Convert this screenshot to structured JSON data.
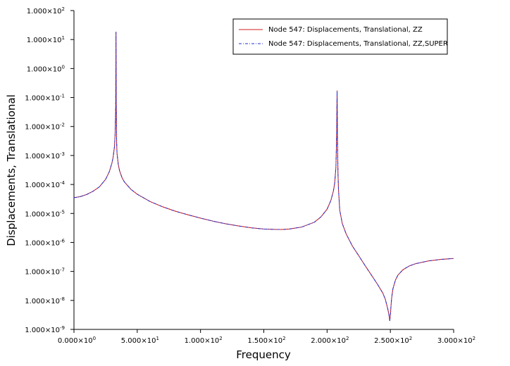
{
  "chart_data": {
    "type": "line",
    "title": "",
    "xlabel": "Frequency",
    "ylabel": "Displacements, Translational",
    "yscale": "log",
    "xlim": [
      0,
      300
    ],
    "ylim": [
      1e-09,
      100
    ],
    "legend_position": "top-right",
    "grid": false,
    "x_tick_labels": [
      {
        "value": 0,
        "mantissa": "0.000×10",
        "exp": "0"
      },
      {
        "value": 50,
        "mantissa": "5.000×10",
        "exp": "1"
      },
      {
        "value": 100,
        "mantissa": "1.000×10",
        "exp": "2"
      },
      {
        "value": 150,
        "mantissa": "1.500×10",
        "exp": "2"
      },
      {
        "value": 200,
        "mantissa": "2.000×10",
        "exp": "2"
      },
      {
        "value": 250,
        "mantissa": "2.500×10",
        "exp": "2"
      },
      {
        "value": 300,
        "mantissa": "3.000×10",
        "exp": "2"
      }
    ],
    "y_tick_labels": [
      {
        "value": 100,
        "mantissa": "1.000×10",
        "exp": "2"
      },
      {
        "value": 10,
        "mantissa": "1.000×10",
        "exp": "1"
      },
      {
        "value": 1,
        "mantissa": "1.000×10",
        "exp": "0"
      },
      {
        "value": 0.1,
        "mantissa": "1.000×10",
        "exp": "-1"
      },
      {
        "value": 0.01,
        "mantissa": "1.000×10",
        "exp": "-2"
      },
      {
        "value": 0.001,
        "mantissa": "1.000×10",
        "exp": "-3"
      },
      {
        "value": 0.0001,
        "mantissa": "1.000×10",
        "exp": "-4"
      },
      {
        "value": 1e-05,
        "mantissa": "1.000×10",
        "exp": "-5"
      },
      {
        "value": 1e-06,
        "mantissa": "1.000×10",
        "exp": "-6"
      },
      {
        "value": 1e-07,
        "mantissa": "1.000×10",
        "exp": "-7"
      },
      {
        "value": 1e-08,
        "mantissa": "1.000×10",
        "exp": "-8"
      },
      {
        "value": 1e-09,
        "mantissa": "1.000×10",
        "exp": "-9"
      }
    ],
    "series": [
      {
        "name": "Node 547: Displacements, Translational, ZZ",
        "color": "#d01c1c",
        "dash": "solid",
        "x": [
          0,
          5,
          10,
          15,
          20,
          25,
          28,
          30,
          31,
          32,
          32.5,
          33,
          33.2,
          33.4,
          33.7,
          34,
          35,
          36,
          38,
          40,
          45,
          50,
          60,
          70,
          80,
          90,
          100,
          110,
          120,
          130,
          140,
          150,
          160,
          165,
          170,
          180,
          190,
          195,
          200,
          203,
          205,
          206,
          207,
          207.6,
          207.9,
          208.2,
          208.6,
          209,
          210,
          212,
          215,
          220,
          225,
          230,
          235,
          240,
          244,
          246,
          248,
          249,
          249.5,
          249.8,
          250.2,
          250.5,
          251,
          252,
          254,
          256,
          260,
          265,
          270,
          280,
          290,
          300
        ],
        "y": [
          3.5e-05,
          3.8e-05,
          4.5e-05,
          5.8e-05,
          8.2e-05,
          0.00015,
          0.00028,
          0.00055,
          0.0009,
          0.002,
          0.005,
          0.05,
          18,
          0.06,
          0.003,
          0.0012,
          0.0005,
          0.0003,
          0.00017,
          0.00012,
          6.8e-05,
          4.6e-05,
          2.6e-05,
          1.7e-05,
          1.2e-05,
          9e-06,
          6.9e-06,
          5.4e-06,
          4.4e-06,
          3.7e-06,
          3.2e-06,
          2.9e-06,
          2.8e-06,
          2.8e-06,
          2.9e-06,
          3.4e-06,
          5e-06,
          7.5e-06,
          1.4e-05,
          2.8e-05,
          6e-05,
          0.00011,
          0.0004,
          0.006,
          0.17,
          0.004,
          0.00025,
          7e-05,
          1.3e-05,
          4.5e-06,
          2e-06,
          7.5e-07,
          3.5e-07,
          1.6e-07,
          7.5e-08,
          3.5e-08,
          1.8e-08,
          1.1e-08,
          5e-09,
          3e-09,
          2e-09,
          2.5e-09,
          4e-09,
          6.5e-09,
          1.2e-08,
          2.5e-08,
          5e-08,
          7.5e-08,
          1.15e-07,
          1.55e-07,
          1.85e-07,
          2.3e-07,
          2.6e-07,
          2.8e-07
        ]
      },
      {
        "name": "Node 547: Displacements, Translational, ZZ,SUPER",
        "color": "#2030d0",
        "dash": "dashdot",
        "x": [
          0,
          5,
          10,
          15,
          20,
          25,
          28,
          30,
          31,
          32,
          32.5,
          33,
          33.2,
          33.4,
          33.7,
          34,
          35,
          36,
          38,
          40,
          45,
          50,
          60,
          70,
          80,
          90,
          100,
          110,
          120,
          130,
          140,
          150,
          160,
          165,
          170,
          180,
          190,
          195,
          200,
          203,
          205,
          206,
          207,
          207.6,
          207.9,
          208.2,
          208.6,
          209,
          210,
          212,
          215,
          220,
          225,
          230,
          235,
          240,
          244,
          246,
          248,
          249,
          249.5,
          249.8,
          250.2,
          250.5,
          251,
          252,
          254,
          256,
          260,
          265,
          270,
          280,
          290,
          300
        ],
        "y": [
          3.5e-05,
          3.8e-05,
          4.5e-05,
          5.8e-05,
          8.2e-05,
          0.00015,
          0.00028,
          0.00055,
          0.0009,
          0.002,
          0.005,
          0.05,
          18,
          0.06,
          0.003,
          0.0012,
          0.0005,
          0.0003,
          0.00017,
          0.00012,
          6.8e-05,
          4.6e-05,
          2.6e-05,
          1.7e-05,
          1.2e-05,
          9e-06,
          6.9e-06,
          5.4e-06,
          4.4e-06,
          3.7e-06,
          3.2e-06,
          2.9e-06,
          2.8e-06,
          2.8e-06,
          2.9e-06,
          3.4e-06,
          5e-06,
          7.5e-06,
          1.4e-05,
          2.8e-05,
          6e-05,
          0.00011,
          0.0004,
          0.006,
          0.17,
          0.004,
          0.00025,
          7e-05,
          1.3e-05,
          4.5e-06,
          2e-06,
          7.5e-07,
          3.5e-07,
          1.6e-07,
          7.5e-08,
          3.5e-08,
          1.8e-08,
          1.1e-08,
          5e-09,
          3e-09,
          2e-09,
          2.5e-09,
          4e-09,
          6.5e-09,
          1.2e-08,
          2.5e-08,
          5e-08,
          7.5e-08,
          1.15e-07,
          1.55e-07,
          1.85e-07,
          2.3e-07,
          2.6e-07,
          2.8e-07
        ]
      }
    ]
  }
}
